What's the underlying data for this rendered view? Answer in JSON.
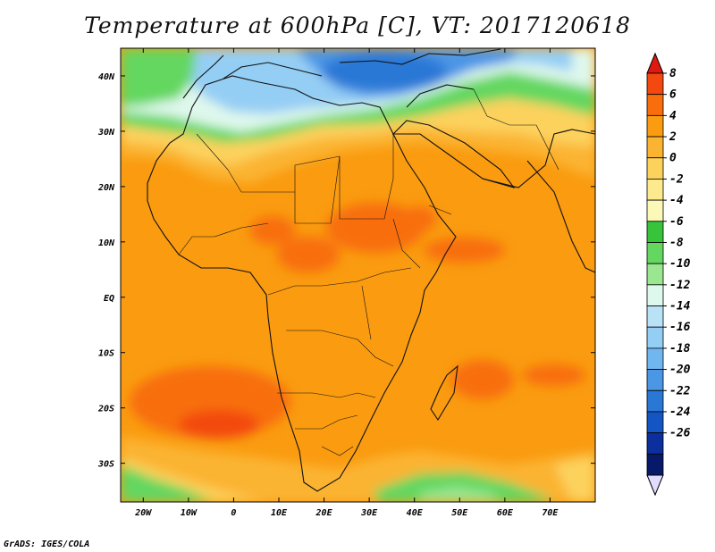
{
  "title": "Temperature at 600hPa [C], VT: 2017120618",
  "credit": "GrADS: IGES/COLA",
  "map": {
    "lon_range": [
      -25,
      80
    ],
    "lat_range": [
      -37,
      45
    ],
    "lon_ticks": [
      {
        "value": -20,
        "label": "20W"
      },
      {
        "value": -10,
        "label": "10W"
      },
      {
        "value": 0,
        "label": "0"
      },
      {
        "value": 10,
        "label": "10E"
      },
      {
        "value": 20,
        "label": "20E"
      },
      {
        "value": 30,
        "label": "30E"
      },
      {
        "value": 40,
        "label": "40E"
      },
      {
        "value": 50,
        "label": "50E"
      },
      {
        "value": 60,
        "label": "60E"
      },
      {
        "value": 70,
        "label": "70E"
      }
    ],
    "lat_ticks": [
      {
        "value": 40,
        "label": "40N"
      },
      {
        "value": 30,
        "label": "30N"
      },
      {
        "value": 20,
        "label": "20N"
      },
      {
        "value": 10,
        "label": "10N"
      },
      {
        "value": 0,
        "label": "EQ"
      },
      {
        "value": -10,
        "label": "10S"
      },
      {
        "value": -20,
        "label": "20S"
      },
      {
        "value": -30,
        "label": "30S"
      }
    ]
  },
  "colorbar": {
    "levels": [
      8,
      6,
      4,
      2,
      0,
      -2,
      -4,
      -6,
      -8,
      -10,
      -12,
      -14,
      -16,
      -18,
      -20,
      -22,
      -24,
      -26
    ],
    "labels": [
      "8",
      "6",
      "4",
      "2",
      "0",
      "-2",
      "-4",
      "-6",
      "-8",
      "-10",
      "-12",
      "-14",
      "-16",
      "-18",
      "-20",
      "-22",
      "-24",
      "-26"
    ],
    "top_arrow_color": "#e0190e",
    "bottom_arrow_color": "#e2dcff",
    "colors": [
      "#f3480f",
      "#f86e0c",
      "#fa9b10",
      "#fbb431",
      "#fcd25d",
      "#fdea8f",
      "#fcf8b8",
      "#37c43a",
      "#64d760",
      "#9be691",
      "#dff8ed",
      "#b9e2f6",
      "#95cef4",
      "#71b7ef",
      "#4c96e6",
      "#2978d6",
      "#1355c2",
      "#0c2f9e",
      "#071a6a"
    ]
  }
}
